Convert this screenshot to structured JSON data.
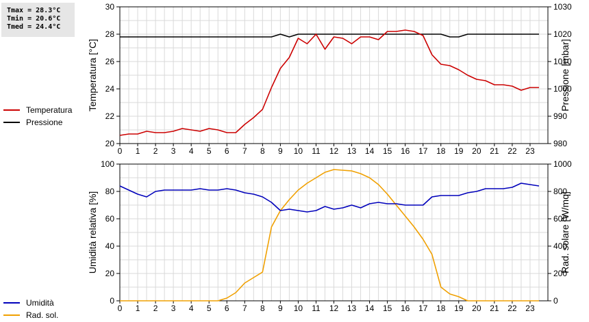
{
  "stats": {
    "tmax": "Tmax = 28.3°C",
    "tmin": "Tmin = 20.6°C",
    "tmed": "Tmed = 24.4°C"
  },
  "legend_top": [
    {
      "label": "Temperatura",
      "color": "#cc0000"
    },
    {
      "label": "Pressione",
      "color": "#000000"
    }
  ],
  "legend_bottom": [
    {
      "label": "Umidità",
      "color": "#0000bb"
    },
    {
      "label": "Rad. sol.",
      "color": "#f0a000"
    }
  ],
  "chart_data": [
    {
      "type": "line",
      "xlabel": "",
      "xlim": [
        0,
        24
      ],
      "x_ticks": [
        0,
        1,
        2,
        3,
        4,
        5,
        6,
        7,
        8,
        9,
        10,
        11,
        12,
        13,
        14,
        15,
        16,
        17,
        18,
        19,
        20,
        21,
        22,
        23
      ],
      "ylabel": "Temperatura [°C]",
      "ylim": [
        20,
        30
      ],
      "y_ticks": [
        20,
        22,
        24,
        26,
        28,
        30
      ],
      "y2label": "Pressione [mbar]",
      "y2lim": [
        980,
        1030
      ],
      "y2_ticks": [
        980,
        990,
        1000,
        1010,
        1020,
        1030
      ],
      "grid": true,
      "series": [
        {
          "name": "Temperatura",
          "axis": "left",
          "color": "#cc0000",
          "x": [
            0,
            0.5,
            1,
            1.5,
            2,
            2.5,
            3,
            3.5,
            4,
            4.5,
            5,
            5.5,
            6,
            6.5,
            7,
            7.5,
            8,
            8.5,
            9,
            9.5,
            10,
            10.5,
            11,
            11.5,
            12,
            12.5,
            13,
            13.5,
            14,
            14.5,
            15,
            15.5,
            16,
            16.5,
            17,
            17.5,
            18,
            18.5,
            19,
            19.5,
            20,
            20.5,
            21,
            21.5,
            22,
            22.5,
            23,
            23.5
          ],
          "values": [
            20.6,
            20.7,
            20.7,
            20.9,
            20.8,
            20.8,
            20.9,
            21.1,
            21.0,
            20.9,
            21.1,
            21.0,
            20.8,
            20.8,
            21.4,
            21.9,
            22.5,
            24.1,
            25.5,
            26.3,
            27.7,
            27.3,
            28.0,
            26.9,
            27.8,
            27.7,
            27.3,
            27.8,
            27.8,
            27.6,
            28.2,
            28.2,
            28.3,
            28.2,
            27.9,
            26.5,
            25.8,
            25.7,
            25.4,
            25.0,
            24.7,
            24.6,
            24.3,
            24.3,
            24.2,
            23.9,
            24.1,
            24.1
          ]
        },
        {
          "name": "Pressione",
          "axis": "right",
          "color": "#000000",
          "x": [
            0,
            0.5,
            1,
            1.5,
            2,
            2.5,
            3,
            3.5,
            4,
            4.5,
            5,
            5.5,
            6,
            6.5,
            7,
            7.5,
            8,
            8.5,
            9,
            9.5,
            10,
            10.5,
            11,
            11.5,
            12,
            12.5,
            13,
            13.5,
            14,
            14.5,
            15,
            15.5,
            16,
            16.5,
            17,
            17.5,
            18,
            18.5,
            19,
            19.5,
            20,
            20.5,
            21,
            21.5,
            22,
            22.5,
            23,
            23.5
          ],
          "values": [
            1019,
            1019,
            1019,
            1019,
            1019,
            1019,
            1019,
            1019,
            1019,
            1019,
            1019,
            1019,
            1019,
            1019,
            1019,
            1019,
            1019,
            1019,
            1020,
            1019,
            1020,
            1020,
            1020,
            1020,
            1020,
            1020,
            1020,
            1020,
            1020,
            1020,
            1020,
            1020,
            1020,
            1020,
            1020,
            1020,
            1020,
            1019,
            1019,
            1020,
            1020,
            1020,
            1020,
            1020,
            1020,
            1020,
            1020,
            1020
          ]
        }
      ]
    },
    {
      "type": "line",
      "xlabel": "",
      "xlim": [
        0,
        24
      ],
      "x_ticks": [
        0,
        1,
        2,
        3,
        4,
        5,
        6,
        7,
        8,
        9,
        10,
        11,
        12,
        13,
        14,
        15,
        16,
        17,
        18,
        19,
        20,
        21,
        22,
        23
      ],
      "ylabel": "Umidità relativa [%]",
      "ylim": [
        0,
        100
      ],
      "y_ticks": [
        0,
        20,
        40,
        60,
        80,
        100
      ],
      "y2label": "Rad. solare [W/mq]",
      "y2lim": [
        0,
        1000
      ],
      "y2_ticks": [
        0,
        200,
        400,
        600,
        800,
        1000
      ],
      "grid": true,
      "series": [
        {
          "name": "Umidità",
          "axis": "left",
          "color": "#0000bb",
          "x": [
            0,
            0.5,
            1,
            1.5,
            2,
            2.5,
            3,
            3.5,
            4,
            4.5,
            5,
            5.5,
            6,
            6.5,
            7,
            7.5,
            8,
            8.5,
            9,
            9.5,
            10,
            10.5,
            11,
            11.5,
            12,
            12.5,
            13,
            13.5,
            14,
            14.5,
            15,
            15.5,
            16,
            16.5,
            17,
            17.5,
            18,
            18.5,
            19,
            19.5,
            20,
            20.5,
            21,
            21.5,
            22,
            22.5,
            23,
            23.5
          ],
          "values": [
            84,
            81,
            78,
            76,
            80,
            81,
            81,
            81,
            81,
            82,
            81,
            81,
            82,
            81,
            79,
            78,
            76,
            72,
            66,
            67,
            66,
            65,
            66,
            69,
            67,
            68,
            70,
            68,
            71,
            72,
            71,
            71,
            70,
            70,
            70,
            76,
            77,
            77,
            77,
            79,
            80,
            82,
            82,
            82,
            83,
            86,
            85,
            84
          ]
        },
        {
          "name": "Rad. sol.",
          "axis": "right",
          "color": "#f0a000",
          "x": [
            0,
            0.5,
            1,
            1.5,
            2,
            2.5,
            3,
            3.5,
            4,
            4.5,
            5,
            5.5,
            6,
            6.5,
            7,
            7.5,
            8,
            8.5,
            9,
            9.5,
            10,
            10.5,
            11,
            11.5,
            12,
            12.5,
            13,
            13.5,
            14,
            14.5,
            15,
            15.5,
            16,
            16.5,
            17,
            17.5,
            18,
            18.5,
            19,
            19.5,
            20,
            20.5,
            21,
            21.5,
            22,
            22.5,
            23,
            23.5
          ],
          "values": [
            0,
            0,
            0,
            0,
            0,
            0,
            0,
            0,
            0,
            0,
            0,
            0,
            20,
            60,
            130,
            170,
            210,
            540,
            660,
            740,
            810,
            860,
            900,
            940,
            960,
            955,
            950,
            930,
            900,
            850,
            780,
            700,
            620,
            540,
            450,
            340,
            100,
            50,
            30,
            0,
            0,
            0,
            0,
            0,
            0,
            0,
            0,
            0
          ]
        }
      ]
    }
  ]
}
